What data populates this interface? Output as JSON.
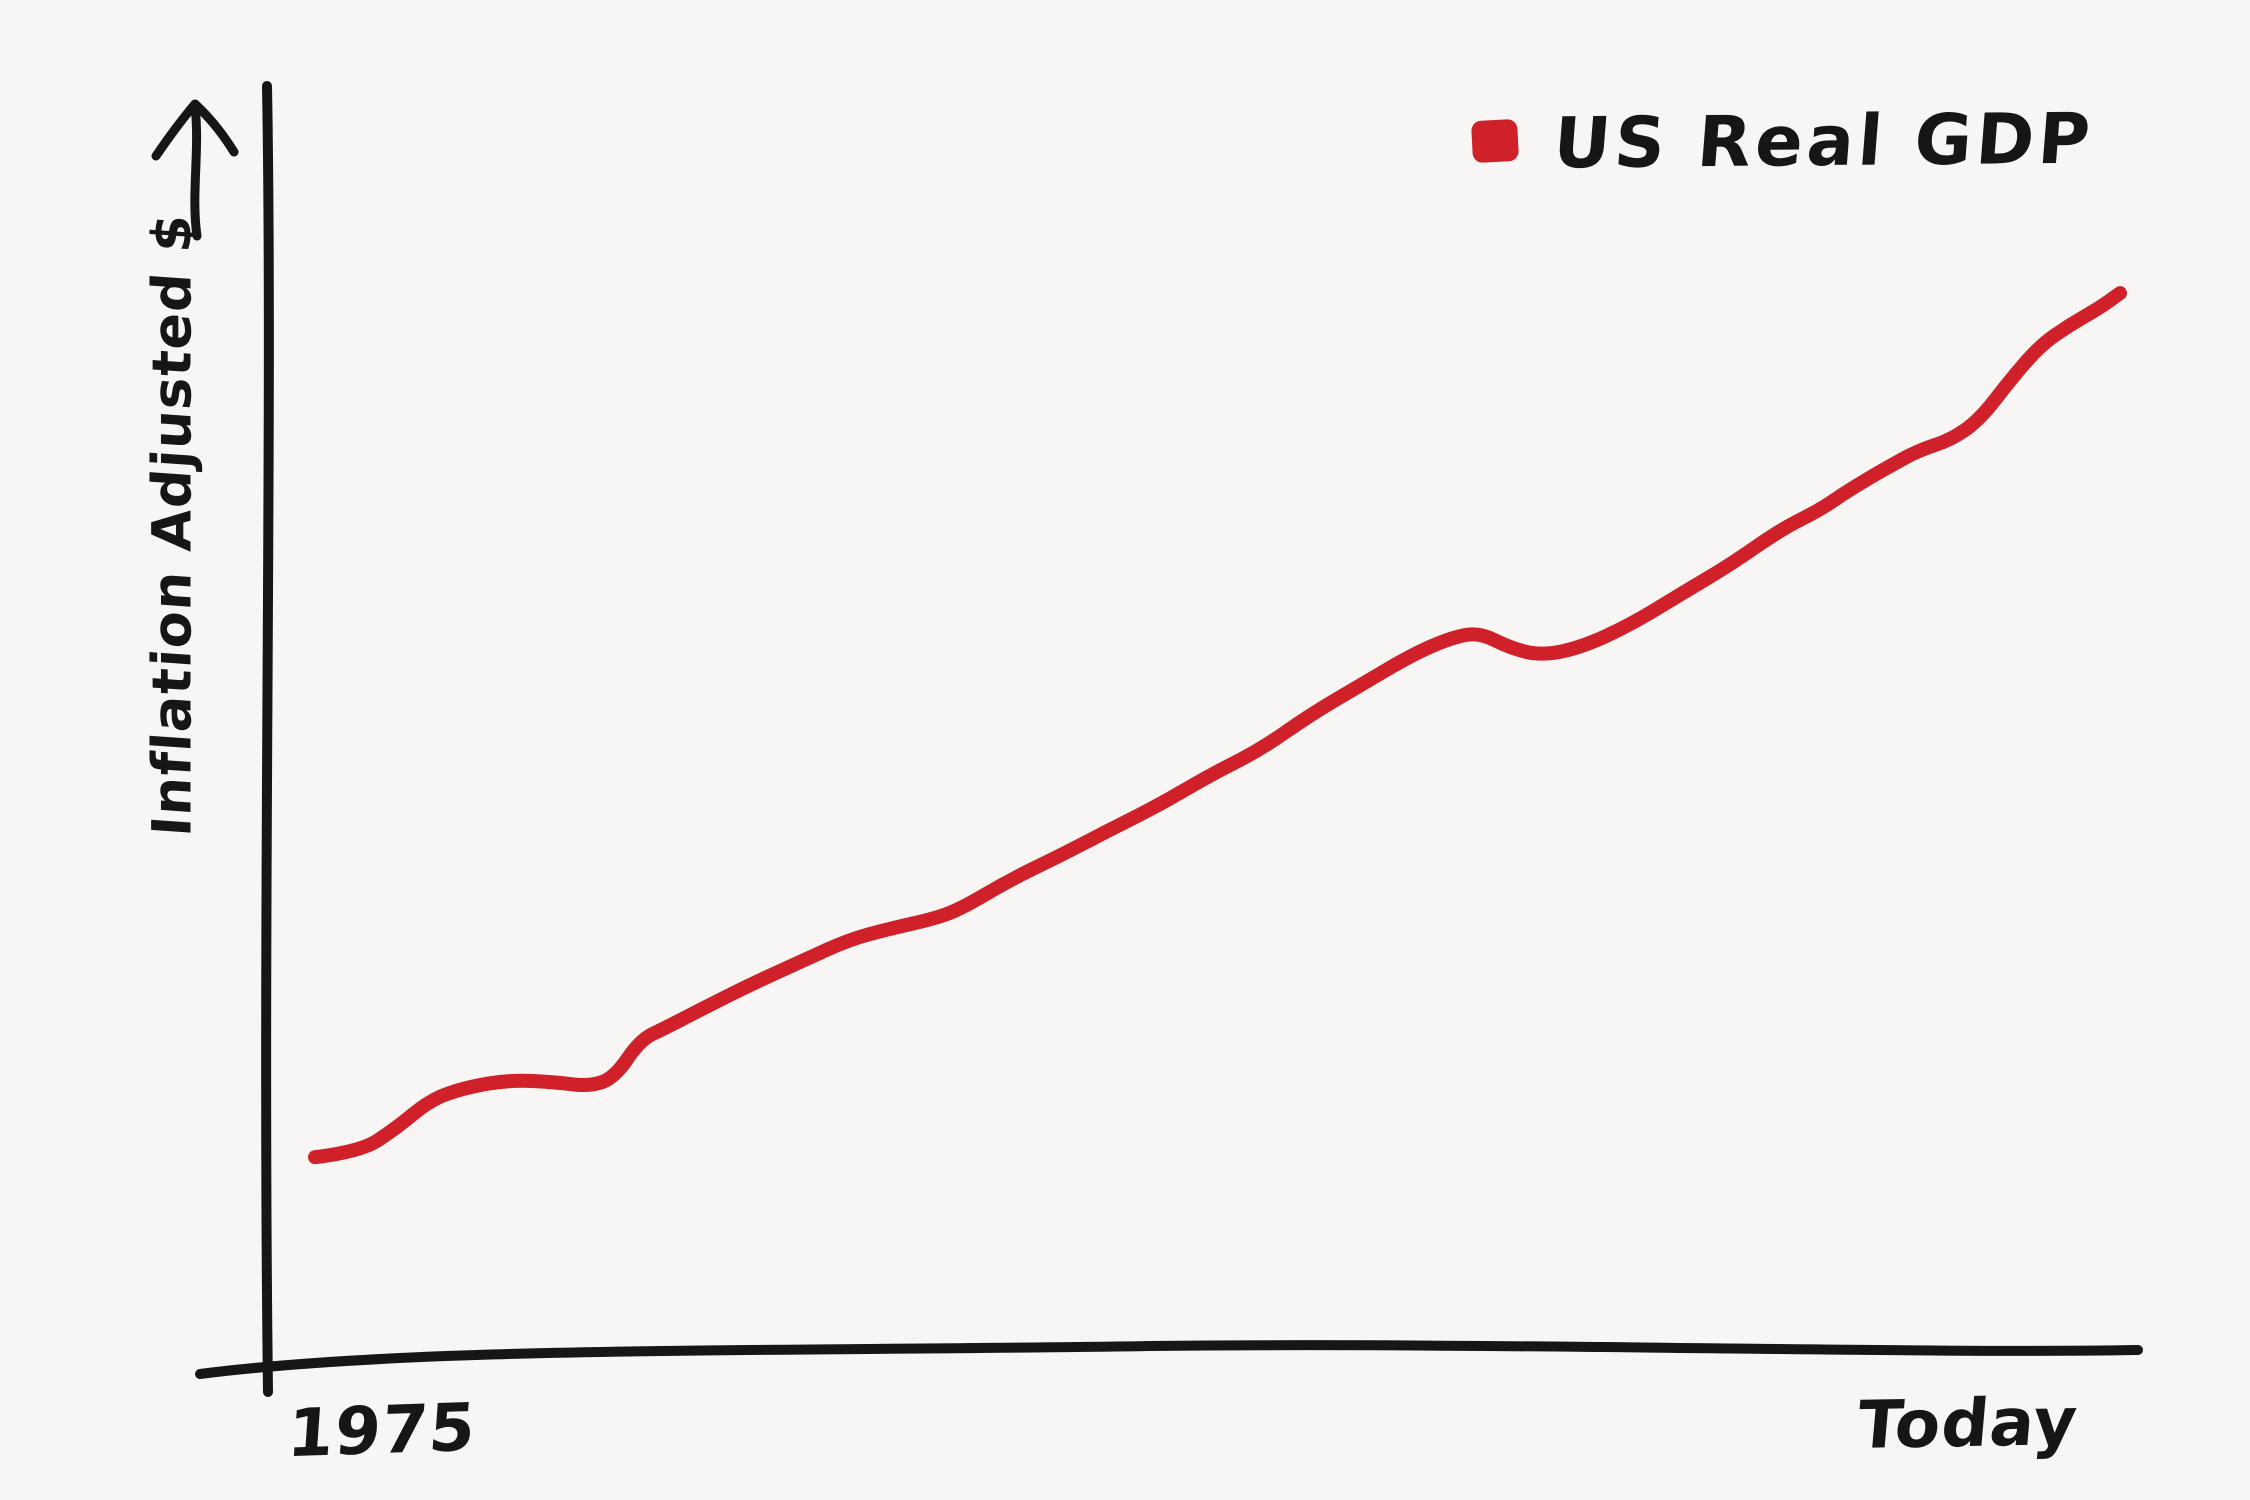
{
  "chart": {
    "background": "#f7f6f4",
    "axis_color": "#161616",
    "line_color": "#d0202a",
    "y_axis_label": "Inflation Adjusted $",
    "x_tick_left": "1975",
    "x_tick_right": "Today",
    "legend": {
      "label": "US Real GDP",
      "swatch_color": "#d0202a"
    }
  },
  "chart_data": {
    "type": "line",
    "title": "",
    "xlabel": "",
    "ylabel": "Inflation Adjusted $",
    "x_tick_labels": [
      "1975",
      "Today"
    ],
    "y_tick_labels": [],
    "grid": false,
    "legend_position": "top-right",
    "style": "hand-drawn",
    "x_range": [
      0,
      1
    ],
    "y_range": [
      0,
      1
    ],
    "series": [
      {
        "name": "US Real GDP",
        "color": "#d0202a",
        "description": "Steadily rising real GDP from 1975 to today, with a brief plateau in the early 1980s, a small dip around 2008-2009, and continued growth afterwards (normalized x along time axis, y as fraction of plot height).",
        "points": [
          [
            0.0,
            0.179
          ],
          [
            0.025,
            0.184
          ],
          [
            0.044,
            0.204
          ],
          [
            0.064,
            0.231
          ],
          [
            0.083,
            0.242
          ],
          [
            0.108,
            0.249
          ],
          [
            0.133,
            0.247
          ],
          [
            0.152,
            0.243
          ],
          [
            0.166,
            0.251
          ],
          [
            0.18,
            0.285
          ],
          [
            0.194,
            0.296
          ],
          [
            0.213,
            0.312
          ],
          [
            0.241,
            0.335
          ],
          [
            0.269,
            0.356
          ],
          [
            0.296,
            0.376
          ],
          [
            0.319,
            0.386
          ],
          [
            0.341,
            0.394
          ],
          [
            0.357,
            0.403
          ],
          [
            0.385,
            0.43
          ],
          [
            0.413,
            0.452
          ],
          [
            0.44,
            0.475
          ],
          [
            0.468,
            0.498
          ],
          [
            0.496,
            0.525
          ],
          [
            0.524,
            0.548
          ],
          [
            0.551,
            0.579
          ],
          [
            0.579,
            0.606
          ],
          [
            0.607,
            0.633
          ],
          [
            0.629,
            0.649
          ],
          [
            0.645,
            0.654
          ],
          [
            0.662,
            0.64
          ],
          [
            0.679,
            0.633
          ],
          [
            0.701,
            0.64
          ],
          [
            0.729,
            0.661
          ],
          [
            0.756,
            0.688
          ],
          [
            0.784,
            0.715
          ],
          [
            0.812,
            0.747
          ],
          [
            0.834,
            0.765
          ],
          [
            0.85,
            0.783
          ],
          [
            0.873,
            0.805
          ],
          [
            0.889,
            0.819
          ],
          [
            0.906,
            0.828
          ],
          [
            0.922,
            0.846
          ],
          [
            0.939,
            0.882
          ],
          [
            0.956,
            0.914
          ],
          [
            0.972,
            0.932
          ],
          [
            0.989,
            0.948
          ],
          [
            1.0,
            0.961
          ]
        ]
      }
    ]
  }
}
